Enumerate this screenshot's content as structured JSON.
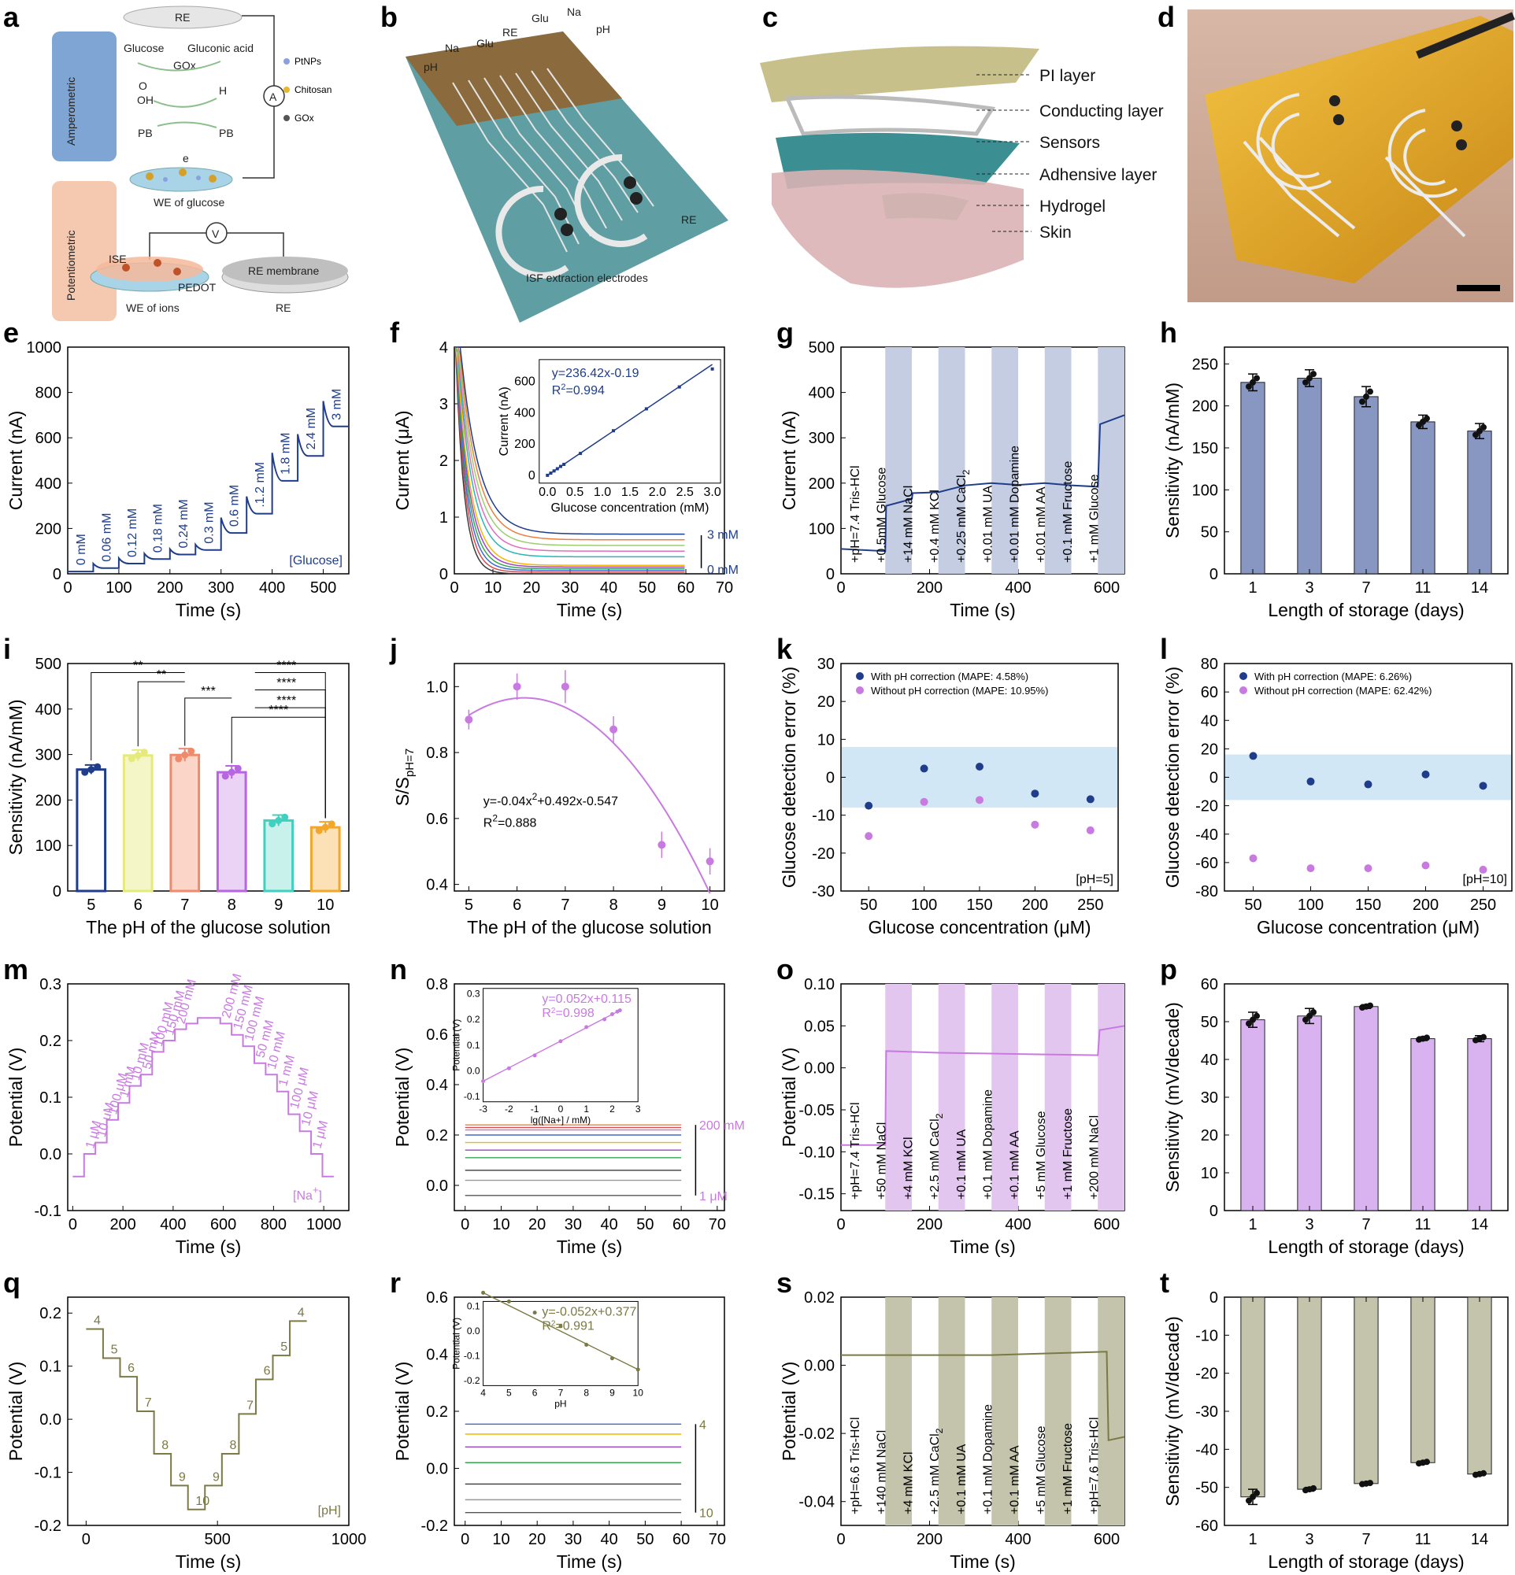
{
  "colors": {
    "glucose": "#1f3d8a",
    "bar_glucose": "#8797c1",
    "sodium": "#c87ae0",
    "bar_sodium": "#d9b3ef",
    "ph": "#7b7a45",
    "bar_ph": "#c3c4ab",
    "band": "#c5cde3",
    "band_na": "#e3c6f0",
    "band_ph": "#c3c4ab",
    "err_band": "#d2e7f5"
  },
  "labels": {
    "a": "a",
    "b": "b",
    "c": "c",
    "d": "d",
    "e": "e",
    "f": "f",
    "g": "g",
    "h": "h",
    "i": "i",
    "j": "j",
    "k": "k",
    "l": "l",
    "m": "m",
    "n": "n",
    "o": "o",
    "p": "p",
    "q": "q",
    "r": "r",
    "s": "s",
    "t": "t"
  },
  "schematic_a": {
    "re_top": "RE",
    "amperometric": "Amperometric",
    "potentiometric": "Potentiometric",
    "glucose": "Glucose",
    "gluconic": "Gluconic acid",
    "gox": "GOx",
    "o2": "O",
    "oh": "OH",
    "h2o2": "H",
    "pbox": "PB",
    "pbred": "PB",
    "eminus": "e",
    "we_glucose": "WE of glucose",
    "ptnps": "PtNPs",
    "chitosan": "Chitosan",
    "gox_leg": "GOx",
    "ammeter": "A",
    "voltmeter": "V",
    "ise": "ISE",
    "pedot": "PEDOT",
    "re_membrane": "RE membrane",
    "we_ions": "WE of ions",
    "re_bottom": "RE"
  },
  "schematic_b": {
    "pha": "pH",
    "naa": "Na",
    "glua": "Glu",
    "reglu": "RE",
    "glub": "Glu",
    "nab": "Na",
    "phb": "pH",
    "reion": "RE",
    "isf": "ISF extraction electrodes"
  },
  "schematic_c": {
    "layers": [
      "PI layer",
      "Conducting layer",
      "Sensors",
      "Adhensive layer",
      "Hydrogel",
      "Skin"
    ]
  },
  "panels": [
    {
      "id": "e",
      "type": "line",
      "xlabel": "Time (s)",
      "ylabel": "Current (nA)",
      "xticks": [
        "0",
        "100",
        "200",
        "300",
        "400",
        "500"
      ],
      "yticks": [
        "0",
        "200",
        "400",
        "600",
        "800",
        "1000"
      ],
      "xlim": [
        0,
        550
      ],
      "ylim": [
        0,
        1000
      ],
      "steps": [
        {
          "t": 0,
          "v": 10
        },
        {
          "t": 50,
          "v": 25
        },
        {
          "t": 100,
          "v": 45
        },
        {
          "t": 150,
          "v": 65
        },
        {
          "t": 200,
          "v": 85
        },
        {
          "t": 250,
          "v": 105
        },
        {
          "t": 300,
          "v": 180
        },
        {
          "t": 350,
          "v": 265
        },
        {
          "t": 400,
          "v": 410
        },
        {
          "t": 450,
          "v": 520
        },
        {
          "t": 500,
          "v": 650
        }
      ],
      "step_labels": [
        "0 mM",
        "0.06 mM",
        "0.12 mM",
        "0.18 mM",
        "0.24 mM",
        "0.3 mM",
        "0.6 mM",
        ".1.2 mM",
        "1.8 mM",
        "2.4 mM",
        "3 mM"
      ],
      "note": "[Glucose]"
    },
    {
      "id": "f",
      "type": "line",
      "xlabel": "Time (s)",
      "ylabel": "Current (μA)",
      "xticks": [
        "0",
        "10",
        "20",
        "30",
        "40",
        "50",
        "60",
        "70"
      ],
      "yticks": [
        "0",
        "1",
        "2",
        "3",
        "4"
      ],
      "xlim": [
        0,
        70
      ],
      "ylim": [
        0,
        4
      ],
      "final_values": [
        0.0,
        0.03,
        0.06,
        0.09,
        0.12,
        0.15,
        0.3,
        0.4,
        0.5,
        0.6,
        0.7
      ],
      "top": "3 mM",
      "bottom": "0 mM",
      "inset": {
        "equation": "y=236.42x-0.19",
        "r2": "R",
        "r2_val": "=0.994",
        "xlabel": "Glucose concentration (mM)",
        "ylabel": "Current (nA)",
        "xticks": [
          "0.0",
          "0.5",
          "1.0",
          "1.5",
          "2.0",
          "2.5",
          "3.0"
        ],
        "yticks": [
          "0",
          "200",
          "400",
          "600"
        ],
        "x": [
          0,
          0.06,
          0.12,
          0.18,
          0.24,
          0.3,
          0.6,
          1.2,
          1.8,
          2.4,
          3.0
        ],
        "y": [
          0,
          14,
          28,
          42,
          57,
          70,
          140,
          285,
          425,
          565,
          680
        ]
      }
    },
    {
      "id": "g",
      "type": "line",
      "xlabel": "Time (s)",
      "ylabel": "Current (nA)",
      "xticks": [
        "0",
        "200",
        "400",
        "600"
      ],
      "yticks": [
        "0",
        "100",
        "200",
        "300",
        "400",
        "500"
      ],
      "xlim": [
        0,
        640
      ],
      "ylim": [
        0,
        500
      ],
      "annotations": [
        "+pH=7.4 Tris-HCl",
        "+0.5mM Glucose",
        "+14 mM NaCl",
        "+0.4 mM KCl",
        "+0.25 mM CaCl",
        "+0.01 mM UA",
        "+0.01 mM Dopamine",
        "+0.01 mM AA",
        "+0.1 mM Fructose",
        "+1 mM Glucose"
      ]
    },
    {
      "id": "h",
      "type": "bar",
      "xlabel": "Length of storage (days)",
      "ylabel": "Sensitivity (nA/mM)",
      "categories": [
        "1",
        "3",
        "7",
        "11",
        "14"
      ],
      "values": [
        228,
        233,
        211,
        181,
        170
      ],
      "errors": [
        10,
        10,
        12,
        8,
        9
      ],
      "yticks": [
        "0",
        "50",
        "100",
        "150",
        "200",
        "250"
      ],
      "ylim": [
        0,
        270
      ]
    },
    {
      "id": "i",
      "type": "bar",
      "xlabel": "The pH of the glucose solution",
      "ylabel": "Sensitivity (nA/mM)",
      "categories": [
        "5",
        "6",
        "7",
        "8",
        "9",
        "10"
      ],
      "values": [
        267,
        298,
        299,
        261,
        155,
        140
      ],
      "errors": [
        10,
        12,
        14,
        14,
        12,
        12
      ],
      "yticks": [
        "0",
        "100",
        "200",
        "300",
        "400",
        "500"
      ],
      "ylim": [
        0,
        500
      ],
      "sig": [
        "**",
        "**",
        "***",
        "****",
        "****",
        "****",
        "****"
      ]
    },
    {
      "id": "j",
      "type": "scatter",
      "xlabel": "The pH of the glucose solution",
      "ylabel": "S/S",
      "ylabel_sub": "pH=7",
      "xticks": [
        "5",
        "6",
        "7",
        "8",
        "9",
        "10"
      ],
      "yticks": [
        "0.4",
        "0.6",
        "0.8",
        "1.0"
      ],
      "xlim": [
        4.7,
        10.3
      ],
      "ylim": [
        0.38,
        1.07
      ],
      "x": [
        5,
        6,
        7,
        8,
        9,
        10
      ],
      "y": [
        0.9,
        1.0,
        1.0,
        0.87,
        0.52,
        0.47
      ],
      "errors": [
        0.03,
        0.04,
        0.05,
        0.04,
        0.04,
        0.04
      ],
      "equation": "y=-0.04x",
      "equation_b": "+0.492x-0.547",
      "r2": "R",
      "r2_val": "=0.888"
    },
    {
      "id": "k",
      "type": "scatter",
      "xlabel": "Glucose concentration (μM)",
      "ylabel": "Glucose detection error (%)",
      "xticks": [
        "50",
        "100",
        "150",
        "200",
        "250"
      ],
      "yticks": [
        "-30",
        "-20",
        "-10",
        "0",
        "10",
        "20",
        "30"
      ],
      "xlim": [
        25,
        275
      ],
      "ylim": [
        -30,
        30
      ],
      "series": [
        {
          "name": "With pH correction (MAPE: 4.58%)",
          "x": [
            50,
            100,
            150,
            200,
            250
          ],
          "y": [
            -7.5,
            2.3,
            2.8,
            -4.3,
            -5.8
          ]
        },
        {
          "name": "Without pH correction (MAPE: 10.95%)",
          "x": [
            50,
            100,
            150,
            200,
            250
          ],
          "y": [
            -15.5,
            -6.5,
            -6.0,
            -12.5,
            -14.0
          ]
        }
      ],
      "note": "[pH=5]",
      "band": [
        -8,
        8
      ]
    },
    {
      "id": "l",
      "type": "scatter",
      "xlabel": "Glucose concentration (μM)",
      "ylabel": "Glucose detection error (%)",
      "xticks": [
        "50",
        "100",
        "150",
        "200",
        "250"
      ],
      "yticks": [
        "-80",
        "-60",
        "-40",
        "-20",
        "0",
        "20",
        "40",
        "60",
        "80"
      ],
      "xlim": [
        25,
        275
      ],
      "ylim": [
        -80,
        80
      ],
      "series": [
        {
          "name": "With pH correction (MAPE: 6.26%)",
          "x": [
            50,
            100,
            150,
            200,
            250
          ],
          "y": [
            15,
            -3,
            -5,
            2,
            -6
          ]
        },
        {
          "name": "Without pH correction (MAPE: 62.42%)",
          "x": [
            50,
            100,
            150,
            200,
            250
          ],
          "y": [
            -57,
            -64,
            -64,
            -62,
            -65
          ]
        }
      ],
      "note": "[pH=10]",
      "band": [
        -16,
        16
      ]
    },
    {
      "id": "m",
      "type": "line",
      "xlabel": "Time (s)",
      "ylabel": "Potential (V)",
      "xticks": [
        "0",
        "200",
        "400",
        "600",
        "800",
        "1000"
      ],
      "yticks": [
        "-0.1",
        "0.0",
        "0.1",
        "0.2",
        "0.3"
      ],
      "xlim": [
        -20,
        1100
      ],
      "ylim": [
        -0.1,
        0.3
      ],
      "note": "[Na",
      "note_b": "]",
      "levels": [
        -0.04,
        0.0,
        0.02,
        0.06,
        0.09,
        0.12,
        0.14,
        0.18,
        0.2,
        0.22,
        0.23,
        0.24,
        0.24,
        0.23,
        0.21,
        0.19,
        0.16,
        0.14,
        0.11,
        0.07,
        0.04,
        0.0,
        -0.04
      ],
      "step_labels": [
        "1 μM",
        "10 μM",
        "100 μM",
        "1 mM",
        "10 mM",
        "50 mM",
        "100 mM",
        "150 mM",
        "200 mM",
        "200 mM",
        "150 mM",
        "100 mM",
        "50 mM",
        "10 mM",
        "1 mM",
        "100 μM",
        "10 μM",
        "1 μM"
      ]
    },
    {
      "id": "n",
      "type": "line",
      "xlabel": "Time (s)",
      "ylabel": "Potential (V)",
      "xticks": [
        "0",
        "10",
        "20",
        "30",
        "40",
        "50",
        "60",
        "70"
      ],
      "yticks": [
        "0.0",
        "0.2",
        "0.4",
        "0.6",
        "0.8"
      ],
      "xlim": [
        -3,
        72
      ],
      "ylim": [
        -0.1,
        0.8
      ],
      "levels": [
        -0.04,
        0.02,
        0.06,
        0.11,
        0.14,
        0.17,
        0.2,
        0.22,
        0.23,
        0.24
      ],
      "top": "200 mM",
      "bottom": "1 μM",
      "inset": {
        "equation": "y=0.052x+0.115",
        "r2": "R",
        "r2_val": "=0.998",
        "xlabel": "lg([Na+] / mM)",
        "ylabel": "Potential (V)",
        "xticks": [
          "-3",
          "-2",
          "-1",
          "0",
          "1",
          "2",
          "3"
        ],
        "yticks": [
          "-0.1",
          "0.0",
          "0.1",
          "0.2",
          "0.3"
        ],
        "x": [
          -3,
          -2,
          -1,
          0,
          1,
          1.7,
          2,
          2.2,
          2.3
        ],
        "y": [
          -0.04,
          0.01,
          0.06,
          0.115,
          0.17,
          0.2,
          0.22,
          0.23,
          0.235
        ]
      }
    },
    {
      "id": "o",
      "type": "line",
      "xlabel": "Time (s)",
      "ylabel": "Potential (V)",
      "xticks": [
        "0",
        "200",
        "400",
        "600"
      ],
      "yticks": [
        "-0.15",
        "-0.10",
        "-0.05",
        "0.00",
        "0.05",
        "0.10"
      ],
      "xlim": [
        0,
        640
      ],
      "ylim": [
        -0.17,
        0.1
      ],
      "annotations": [
        "+pH=7.4 Tris-HCl",
        "+50 mM NaCl",
        "+4 mM KCl",
        "+2.5 mM CaCl",
        "+0.1 mM UA",
        "+0.1 mM Dopamine",
        "+0.1 mM AA",
        "+5 mM Glucose",
        "+1 mM Fructose",
        "+200 mM NaCl"
      ]
    },
    {
      "id": "p",
      "type": "bar",
      "xlabel": "Length of storage (days)",
      "ylabel": "Sensitivity (mV/decade)",
      "categories": [
        "1",
        "3",
        "7",
        "11",
        "14"
      ],
      "values": [
        50.5,
        51.5,
        54,
        45.5,
        45.5
      ],
      "errors": [
        2,
        2,
        0.5,
        0.5,
        0.8
      ],
      "yticks": [
        "0",
        "10",
        "20",
        "30",
        "40",
        "50",
        "60"
      ],
      "ylim": [
        0,
        60
      ]
    },
    {
      "id": "q",
      "type": "line",
      "xlabel": "Time (s)",
      "ylabel": "Potential (V)",
      "xticks": [
        "0",
        "500",
        "1000"
      ],
      "yticks": [
        "-0.2",
        "-0.1",
        "0.0",
        "0.1",
        "0.2"
      ],
      "xlim": [
        -70,
        1000
      ],
      "ylim": [
        -0.2,
        0.23
      ],
      "note": "[pH]",
      "levels": [
        0.17,
        0.115,
        0.08,
        0.015,
        -0.065,
        -0.125,
        -0.17,
        -0.125,
        -0.065,
        0.01,
        0.075,
        0.12,
        0.185
      ],
      "step_labels": [
        "4",
        "5",
        "6",
        "7",
        "8",
        "9",
        "10",
        "9",
        "8",
        "7",
        "6",
        "5",
        "4"
      ]
    },
    {
      "id": "r",
      "type": "line",
      "xlabel": "Time (s)",
      "ylabel": "Potential (V)",
      "xticks": [
        "0",
        "10",
        "20",
        "30",
        "40",
        "50",
        "60",
        "70"
      ],
      "yticks": [
        "-0.2",
        "0.0",
        "0.2",
        "0.4",
        "0.6"
      ],
      "xlim": [
        -3,
        72
      ],
      "ylim": [
        -0.2,
        0.6
      ],
      "levels": [
        -0.155,
        -0.11,
        -0.055,
        0.02,
        0.075,
        0.12,
        0.155
      ],
      "top": "4",
      "bottom": "10",
      "inset": {
        "equation": "y=-0.052x+0.377",
        "r2": "R",
        "r2_val": "=0.991",
        "xlabel": "pH",
        "ylabel": "Potential (V)",
        "xticks": [
          "4",
          "5",
          "6",
          "7",
          "8",
          "9",
          "10"
        ],
        "yticks": [
          "-0.2",
          "-0.1",
          "0.0",
          "0.1"
        ],
        "x": [
          4,
          5,
          6,
          7,
          8,
          9,
          10
        ],
        "y": [
          0.155,
          0.12,
          0.075,
          0.02,
          -0.055,
          -0.11,
          -0.155
        ]
      }
    },
    {
      "id": "s",
      "type": "line",
      "xlabel": "Time (s)",
      "ylabel": "Potential (V)",
      "xticks": [
        "0",
        "200",
        "400",
        "600"
      ],
      "yticks": [
        "-0.04",
        "-0.02",
        "0.00",
        "0.02"
      ],
      "xlim": [
        0,
        640
      ],
      "ylim": [
        -0.047,
        0.02
      ],
      "annotations": [
        "+pH=6.6 Tris-HCl",
        "+140 mM NaCl",
        "+4 mM KCl",
        "+2.5 mM CaCl",
        "+0.1 mM UA",
        "+0.1 mM Dopamine",
        "+0.1 mM AA",
        "+5 mM Glucose",
        "+1 mM Fructose",
        "+pH=7.6 Tris-HCl"
      ]
    },
    {
      "id": "t",
      "type": "bar",
      "xlabel": "Length of storage (days)",
      "ylabel": "Sensitivity (mV/decade)",
      "categories": [
        "1",
        "3",
        "7",
        "11",
        "14"
      ],
      "values": [
        -52.5,
        -50.5,
        -49,
        -43.5,
        -46.5
      ],
      "errors": [
        2,
        0.5,
        0.3,
        0.4,
        0.4
      ],
      "yticks": [
        "0",
        "-10",
        "-20",
        "-30",
        "-40",
        "-50",
        "-60"
      ],
      "ylim": [
        -60,
        0
      ]
    }
  ]
}
